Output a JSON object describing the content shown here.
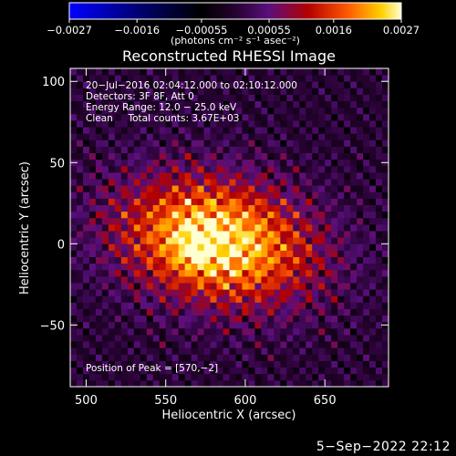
{
  "chart_data": {
    "type": "heatmap",
    "title": "Reconstructed RHESSI Image",
    "xlabel": "Heliocentric X (arcsec)",
    "ylabel": "Heliocentric Y (arcsec)",
    "xlim": [
      490,
      690
    ],
    "ylim": [
      -88,
      108
    ],
    "x_ticks": [
      500,
      550,
      600,
      650
    ],
    "y_ticks": [
      100,
      50,
      0,
      -50
    ],
    "x_tick_labels": [
      "500",
      "550",
      "600",
      "650"
    ],
    "y_tick_labels": [
      "100",
      "50",
      "0",
      "−50"
    ],
    "colorbar": {
      "range": [
        -0.0027,
        0.0027
      ],
      "ticks": [
        -0.0027,
        -0.0016,
        -0.00055,
        0.00055,
        0.0016,
        0.0027
      ],
      "tick_labels": [
        "−0.0027",
        "−0.0016",
        "−0.00055",
        "0.00055",
        "0.0016",
        "0.0027"
      ],
      "units": "(photons cm⁻² s⁻¹ asec⁻²)",
      "colormap": "blue-black-red-yellow-white"
    },
    "annotations": [
      "20−Jul−2016 02:04:12.000 to 02:10:12.000",
      "Detectors: 3F 8F, Att 0",
      "Energy Range: 12.0 − 25.0 keV",
      "Clean     Total counts: 3.67E+03"
    ],
    "peak_label": "Position of Peak = [570,−2]",
    "peak": {
      "x": 570,
      "y": -2
    },
    "source": {
      "center_x": 582,
      "center_y": 2,
      "sigma_x": 42,
      "sigma_y": 26,
      "rotation_deg": -12
    }
  },
  "footer_date": "5−Sep−2022 22:12"
}
